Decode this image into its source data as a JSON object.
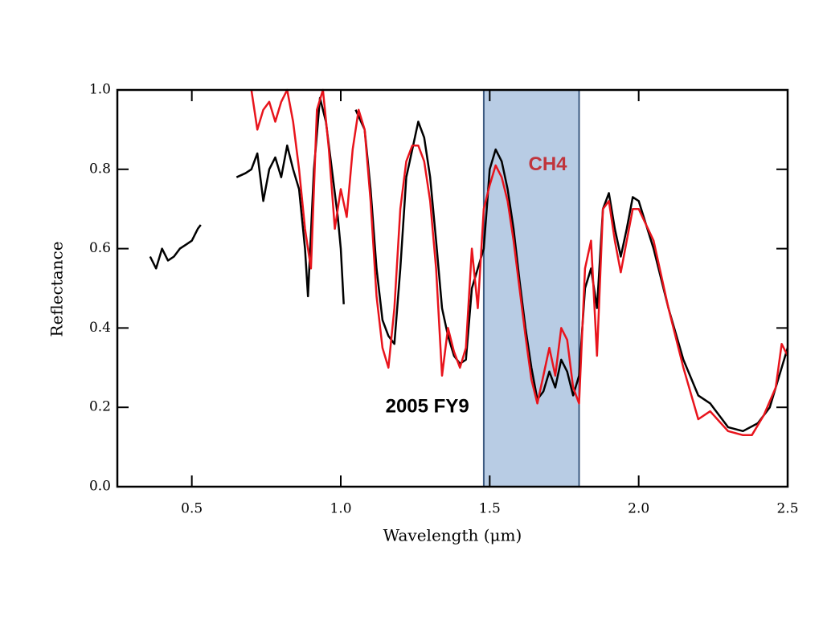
{
  "chart_data": {
    "type": "line",
    "xlabel": "Wavelength (μm)",
    "ylabel": "Reflectance",
    "xlim": [
      0.25,
      2.5
    ],
    "ylim": [
      0,
      1
    ],
    "xticks": [
      0.5,
      {
        "value": 1,
        "label": "1.0"
      },
      1.5,
      {
        "value": 2,
        "label": "2.0"
      },
      2.5
    ],
    "yticks": [
      {
        "value": 0,
        "label": "0.0"
      },
      0.2,
      0.4,
      0.6,
      0.8,
      {
        "value": 1,
        "label": "1.0"
      }
    ],
    "shade": {
      "x": [
        1.48,
        1.8
      ],
      "color": "#b8cce4",
      "edge": "#3d5a80"
    },
    "annotations": [
      {
        "text": "2005 FY9",
        "x": 1.15,
        "y": 0.2,
        "color": "#000000"
      },
      {
        "text": "CH4",
        "x": 1.63,
        "y": 0.81,
        "color": "#c0343c"
      }
    ],
    "series": [
      {
        "color": "#000000",
        "x": [
          0.36,
          0.38,
          0.4,
          0.42,
          0.44,
          0.46,
          0.48,
          0.5,
          0.52,
          0.53,
          0.58,
          0.65,
          0.68,
          0.7,
          0.72,
          0.74,
          0.76,
          0.78,
          0.8,
          0.82,
          0.84,
          0.86,
          0.88,
          0.89,
          0.91,
          0.93,
          0.95,
          0.97,
          0.99,
          1.0,
          1.01,
          1.03,
          1.05,
          1.08,
          1.1,
          1.12,
          1.14,
          1.16,
          1.18,
          1.2,
          1.22,
          1.24,
          1.26,
          1.28,
          1.3,
          1.32,
          1.34,
          1.36,
          1.38,
          1.4,
          1.42,
          1.44,
          1.46,
          1.48,
          1.5,
          1.52,
          1.54,
          1.56,
          1.58,
          1.6,
          1.62,
          1.64,
          1.66,
          1.68,
          1.7,
          1.72,
          1.74,
          1.76,
          1.78,
          1.8,
          1.82,
          1.84,
          1.86,
          1.88,
          1.9,
          1.92,
          1.94,
          1.96,
          1.98,
          2.0,
          2.05,
          2.1,
          2.15,
          2.2,
          2.24,
          2.3,
          2.35,
          2.4,
          2.44,
          2.48,
          2.5
        ],
        "values": [
          0.58,
          0.55,
          0.6,
          0.57,
          0.58,
          0.6,
          0.61,
          0.62,
          0.65,
          0.66,
          null,
          0.78,
          0.79,
          0.8,
          0.84,
          0.72,
          0.8,
          0.83,
          0.78,
          0.86,
          0.8,
          0.75,
          0.6,
          0.48,
          0.8,
          0.98,
          0.92,
          0.8,
          0.68,
          0.6,
          0.46,
          null,
          0.95,
          0.9,
          0.75,
          0.55,
          0.42,
          0.38,
          0.36,
          0.55,
          0.78,
          0.85,
          0.92,
          0.88,
          0.78,
          0.62,
          0.45,
          0.38,
          0.33,
          0.31,
          0.32,
          0.5,
          0.55,
          0.6,
          0.8,
          0.85,
          0.82,
          0.75,
          0.65,
          0.52,
          0.4,
          0.3,
          0.22,
          0.24,
          0.29,
          0.25,
          0.32,
          0.29,
          0.23,
          0.28,
          0.5,
          0.55,
          0.45,
          0.7,
          0.74,
          0.65,
          0.58,
          0.65,
          0.73,
          0.72,
          0.6,
          0.45,
          0.32,
          0.23,
          0.21,
          0.15,
          0.14,
          0.16,
          0.2,
          0.3,
          0.35
        ]
      },
      {
        "color": "#e8141c",
        "x": [
          0.7,
          0.72,
          0.74,
          0.76,
          0.78,
          0.8,
          0.82,
          0.84,
          0.86,
          0.88,
          0.9,
          0.92,
          0.94,
          0.96,
          0.98,
          1.0,
          1.02,
          1.04,
          1.06,
          1.08,
          1.1,
          1.12,
          1.14,
          1.16,
          1.18,
          1.2,
          1.22,
          1.24,
          1.26,
          1.28,
          1.3,
          1.32,
          1.34,
          1.36,
          1.38,
          1.4,
          1.42,
          1.44,
          1.46,
          1.48,
          1.5,
          1.52,
          1.54,
          1.56,
          1.58,
          1.6,
          1.62,
          1.64,
          1.66,
          1.68,
          1.7,
          1.72,
          1.74,
          1.76,
          1.78,
          1.8,
          1.82,
          1.84,
          1.86,
          1.88,
          1.9,
          1.92,
          1.94,
          1.96,
          1.98,
          2.0,
          2.05,
          2.1,
          2.15,
          2.2,
          2.24,
          2.3,
          2.35,
          2.38,
          2.42,
          2.46,
          2.48,
          2.5
        ],
        "values": [
          1.0,
          0.9,
          0.95,
          0.97,
          0.92,
          0.97,
          1.0,
          0.92,
          0.8,
          0.65,
          0.55,
          0.95,
          1.0,
          0.85,
          0.65,
          0.75,
          0.68,
          0.85,
          0.95,
          0.9,
          0.72,
          0.48,
          0.35,
          0.3,
          0.45,
          0.7,
          0.82,
          0.86,
          0.86,
          0.82,
          0.72,
          0.55,
          0.28,
          0.4,
          0.34,
          0.3,
          0.35,
          0.6,
          0.45,
          0.7,
          0.76,
          0.81,
          0.78,
          0.72,
          0.62,
          0.5,
          0.38,
          0.27,
          0.21,
          0.28,
          0.35,
          0.28,
          0.4,
          0.37,
          0.25,
          0.21,
          0.55,
          0.62,
          0.33,
          0.7,
          0.72,
          0.62,
          0.54,
          0.62,
          0.7,
          0.7,
          0.62,
          0.45,
          0.3,
          0.17,
          0.19,
          0.14,
          0.13,
          0.13,
          0.18,
          0.25,
          0.36,
          0.33
        ]
      }
    ]
  }
}
